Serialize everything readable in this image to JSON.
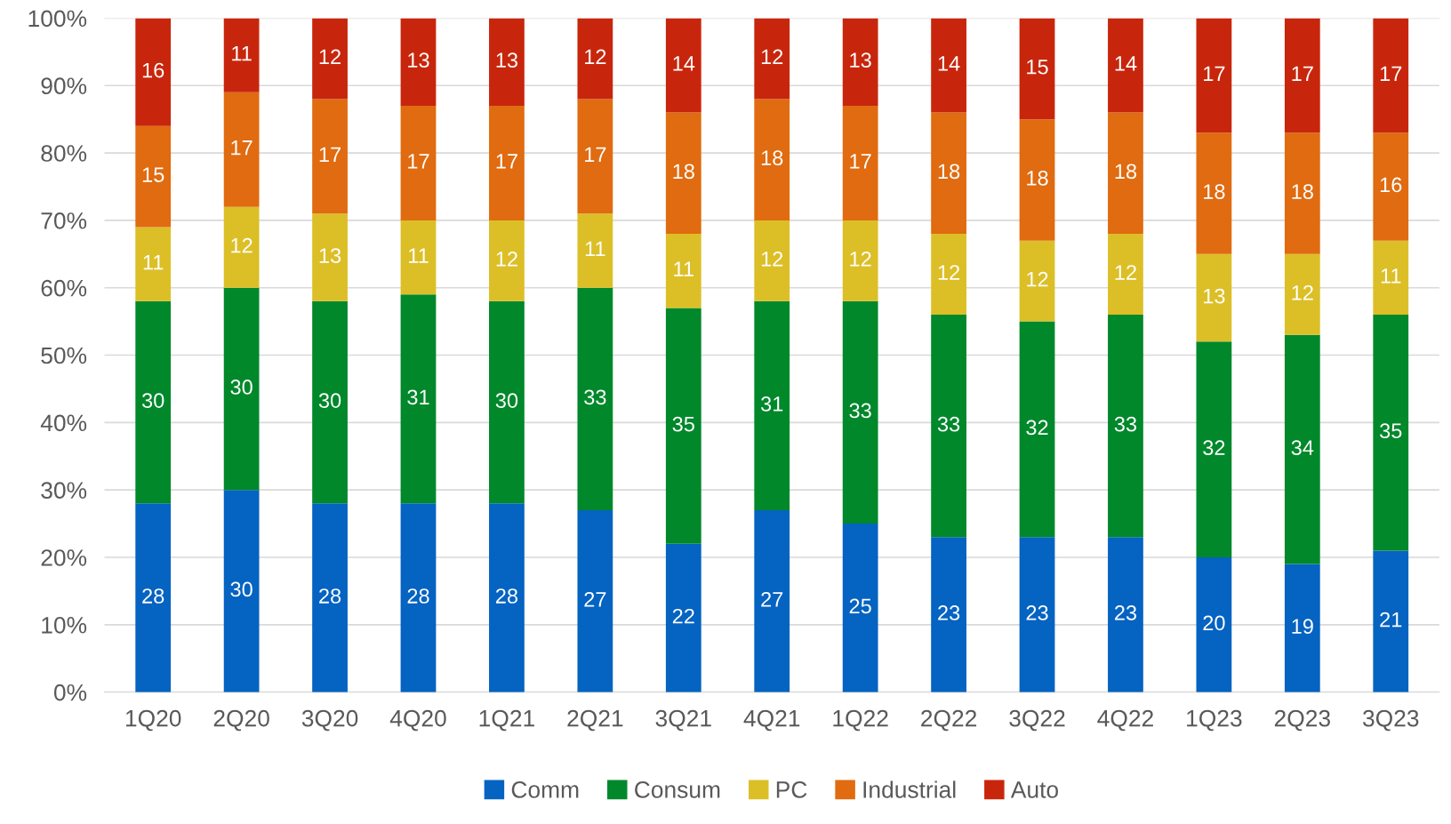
{
  "chart_data": {
    "type": "bar",
    "stacked": true,
    "data_labels": true,
    "grid": "y",
    "legend": "bottom",
    "categories": [
      "1Q20",
      "2Q20",
      "3Q20",
      "4Q20",
      "1Q21",
      "2Q21",
      "3Q21",
      "4Q21",
      "1Q22",
      "2Q22",
      "3Q22",
      "4Q22",
      "1Q23",
      "2Q23",
      "3Q23"
    ],
    "ylim": [
      0,
      100
    ],
    "yticks": [
      {
        "value": 0,
        "label": "0%"
      },
      {
        "value": 10,
        "label": "10%"
      },
      {
        "value": 20,
        "label": "20%"
      },
      {
        "value": 30,
        "label": "30%"
      },
      {
        "value": 40,
        "label": "40%"
      },
      {
        "value": 50,
        "label": "50%"
      },
      {
        "value": 60,
        "label": "60%"
      },
      {
        "value": 70,
        "label": "70%"
      },
      {
        "value": 80,
        "label": "80%"
      },
      {
        "value": 90,
        "label": "90%"
      },
      {
        "value": 100,
        "label": "100%"
      }
    ],
    "series": [
      {
        "name": "Comm",
        "color": "#0563c1",
        "values": [
          28,
          30,
          28,
          28,
          28,
          27,
          22,
          27,
          25,
          23,
          23,
          23,
          20,
          19,
          21
        ]
      },
      {
        "name": "Consum",
        "color": "#00882b",
        "values": [
          30,
          30,
          30,
          31,
          30,
          33,
          35,
          31,
          33,
          33,
          32,
          33,
          32,
          34,
          35
        ]
      },
      {
        "name": "PC",
        "color": "#dcbf27",
        "values": [
          11,
          12,
          13,
          11,
          12,
          11,
          11,
          12,
          12,
          12,
          12,
          12,
          13,
          12,
          11
        ]
      },
      {
        "name": "Industrial",
        "color": "#e06b10",
        "values": [
          15,
          17,
          17,
          17,
          17,
          17,
          18,
          18,
          17,
          18,
          18,
          18,
          18,
          18,
          16
        ]
      },
      {
        "name": "Auto",
        "color": "#c8260c",
        "values": [
          16,
          11,
          12,
          13,
          13,
          12,
          14,
          12,
          13,
          14,
          15,
          14,
          17,
          17,
          17
        ]
      }
    ]
  }
}
